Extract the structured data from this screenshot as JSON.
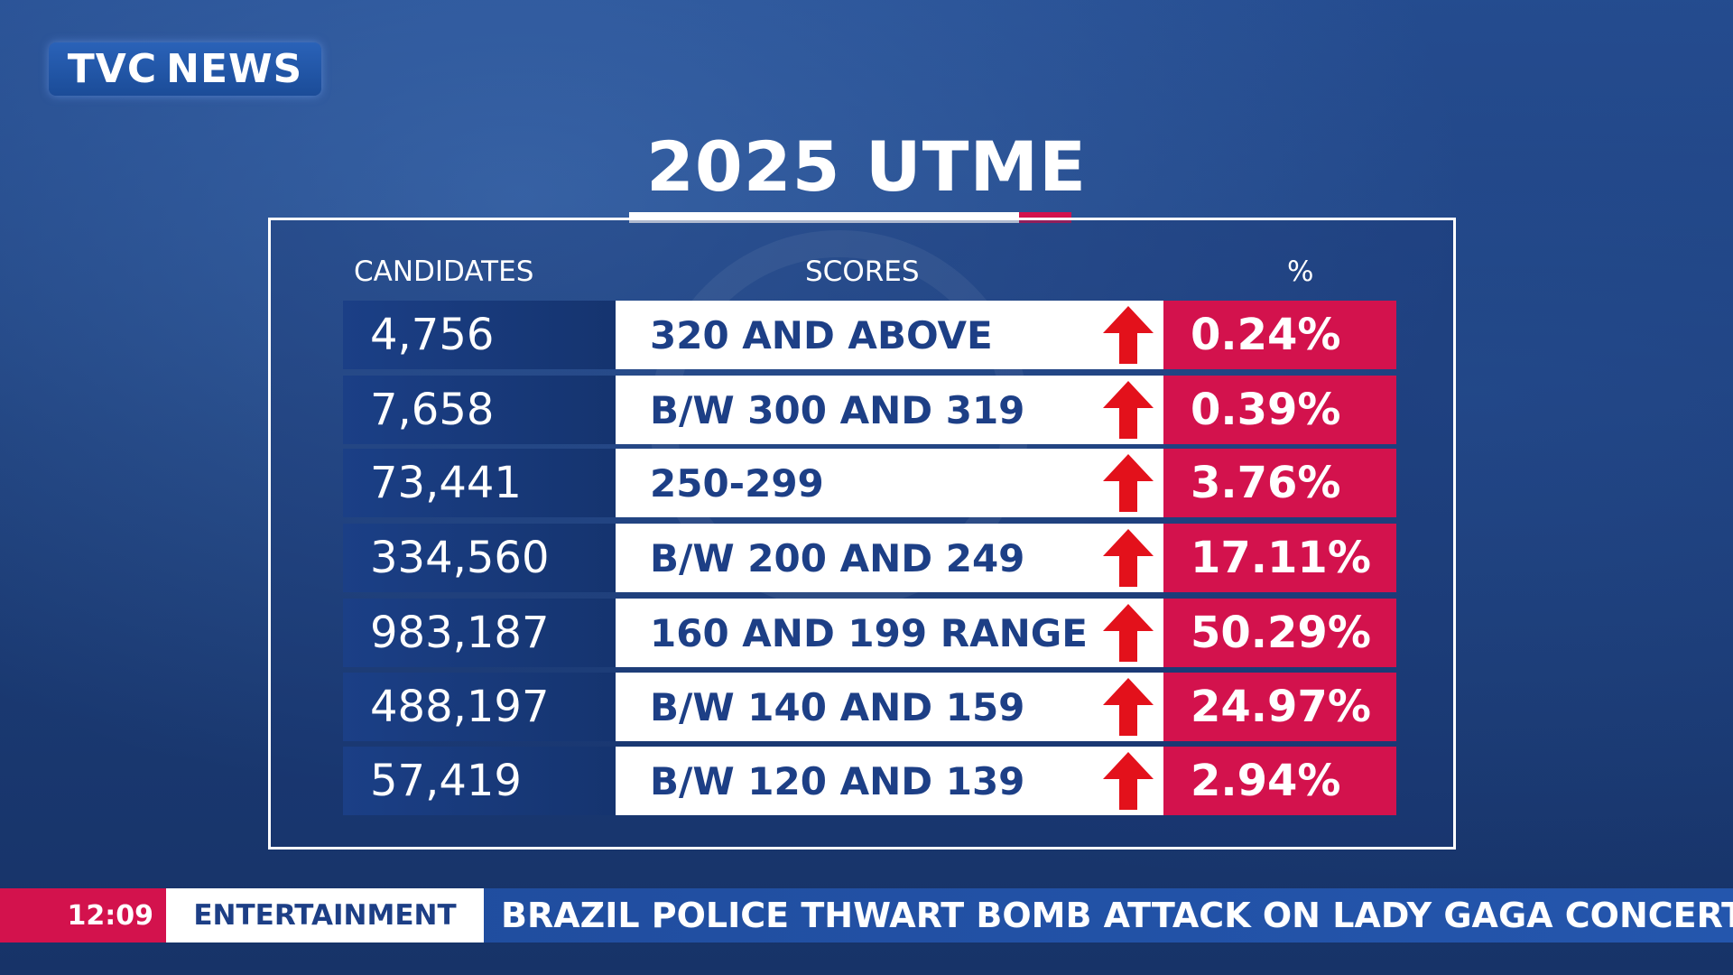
{
  "brand": {
    "logo_text_left": "TVC",
    "logo_text_right": "NEWS"
  },
  "title": "2025 UTME",
  "table": {
    "headers": [
      "CANDIDATES",
      "SCORES",
      "%"
    ],
    "rows": [
      {
        "candidates": "4,756",
        "score": "320 AND ABOVE",
        "pct": "0.24%"
      },
      {
        "candidates": "7,658",
        "score": "B/W 300 AND 319",
        "pct": "0.39%"
      },
      {
        "candidates": "73,441",
        "score": "250-299",
        "pct": "3.76%"
      },
      {
        "candidates": "334,560",
        "score": "B/W 200 AND 249",
        "pct": "17.11%"
      },
      {
        "candidates": "983,187",
        "score": "160 AND 199 RANGE",
        "pct": "50.29%"
      },
      {
        "candidates": "488,197",
        "score": "B/W 140 AND 159",
        "pct": "24.97%"
      },
      {
        "candidates": "57,419",
        "score": "B/W 120 AND 139",
        "pct": "2.94%"
      }
    ],
    "arrow_icon": "arrow-up-icon",
    "arrow_color": "#e3111b"
  },
  "ticker": {
    "time": "12:09",
    "category": "ENTERTAINMENT",
    "headline": "BRAZIL POLICE THWART BOMB ATTACK ON LADY GAGA CONCERT"
  },
  "colors": {
    "accent_red": "#d3124d",
    "brand_blue": "#1d3f86",
    "background": "#1e3f7c"
  }
}
